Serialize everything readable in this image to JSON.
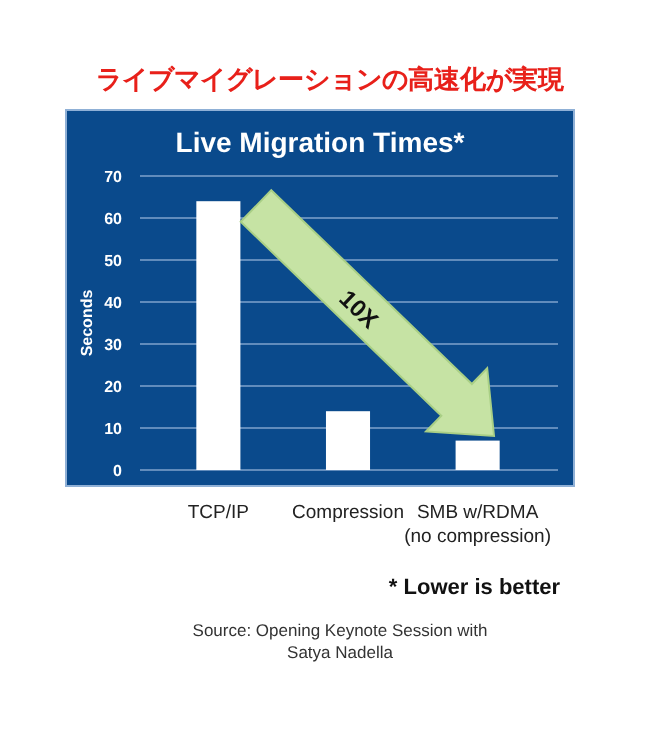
{
  "chart_data": {
    "type": "bar",
    "title": "ライブマイグレーションの高速化が実現",
    "subtitle": "Live Migration Times*",
    "ylabel": "Seconds",
    "categories": [
      "TCP/IP",
      "Compression",
      "SMB w/RDMA (no compression)"
    ],
    "values": [
      64,
      14,
      7
    ],
    "color": "#ffffff",
    "ylim": [
      0,
      70
    ],
    "yticks": [
      0,
      10,
      20,
      30,
      40,
      50,
      60,
      70
    ],
    "grid": "y",
    "annotations": [
      "10X",
      "* Lower is better",
      "Source: Opening Keynote Session with Satya Nadella"
    ]
  }
}
